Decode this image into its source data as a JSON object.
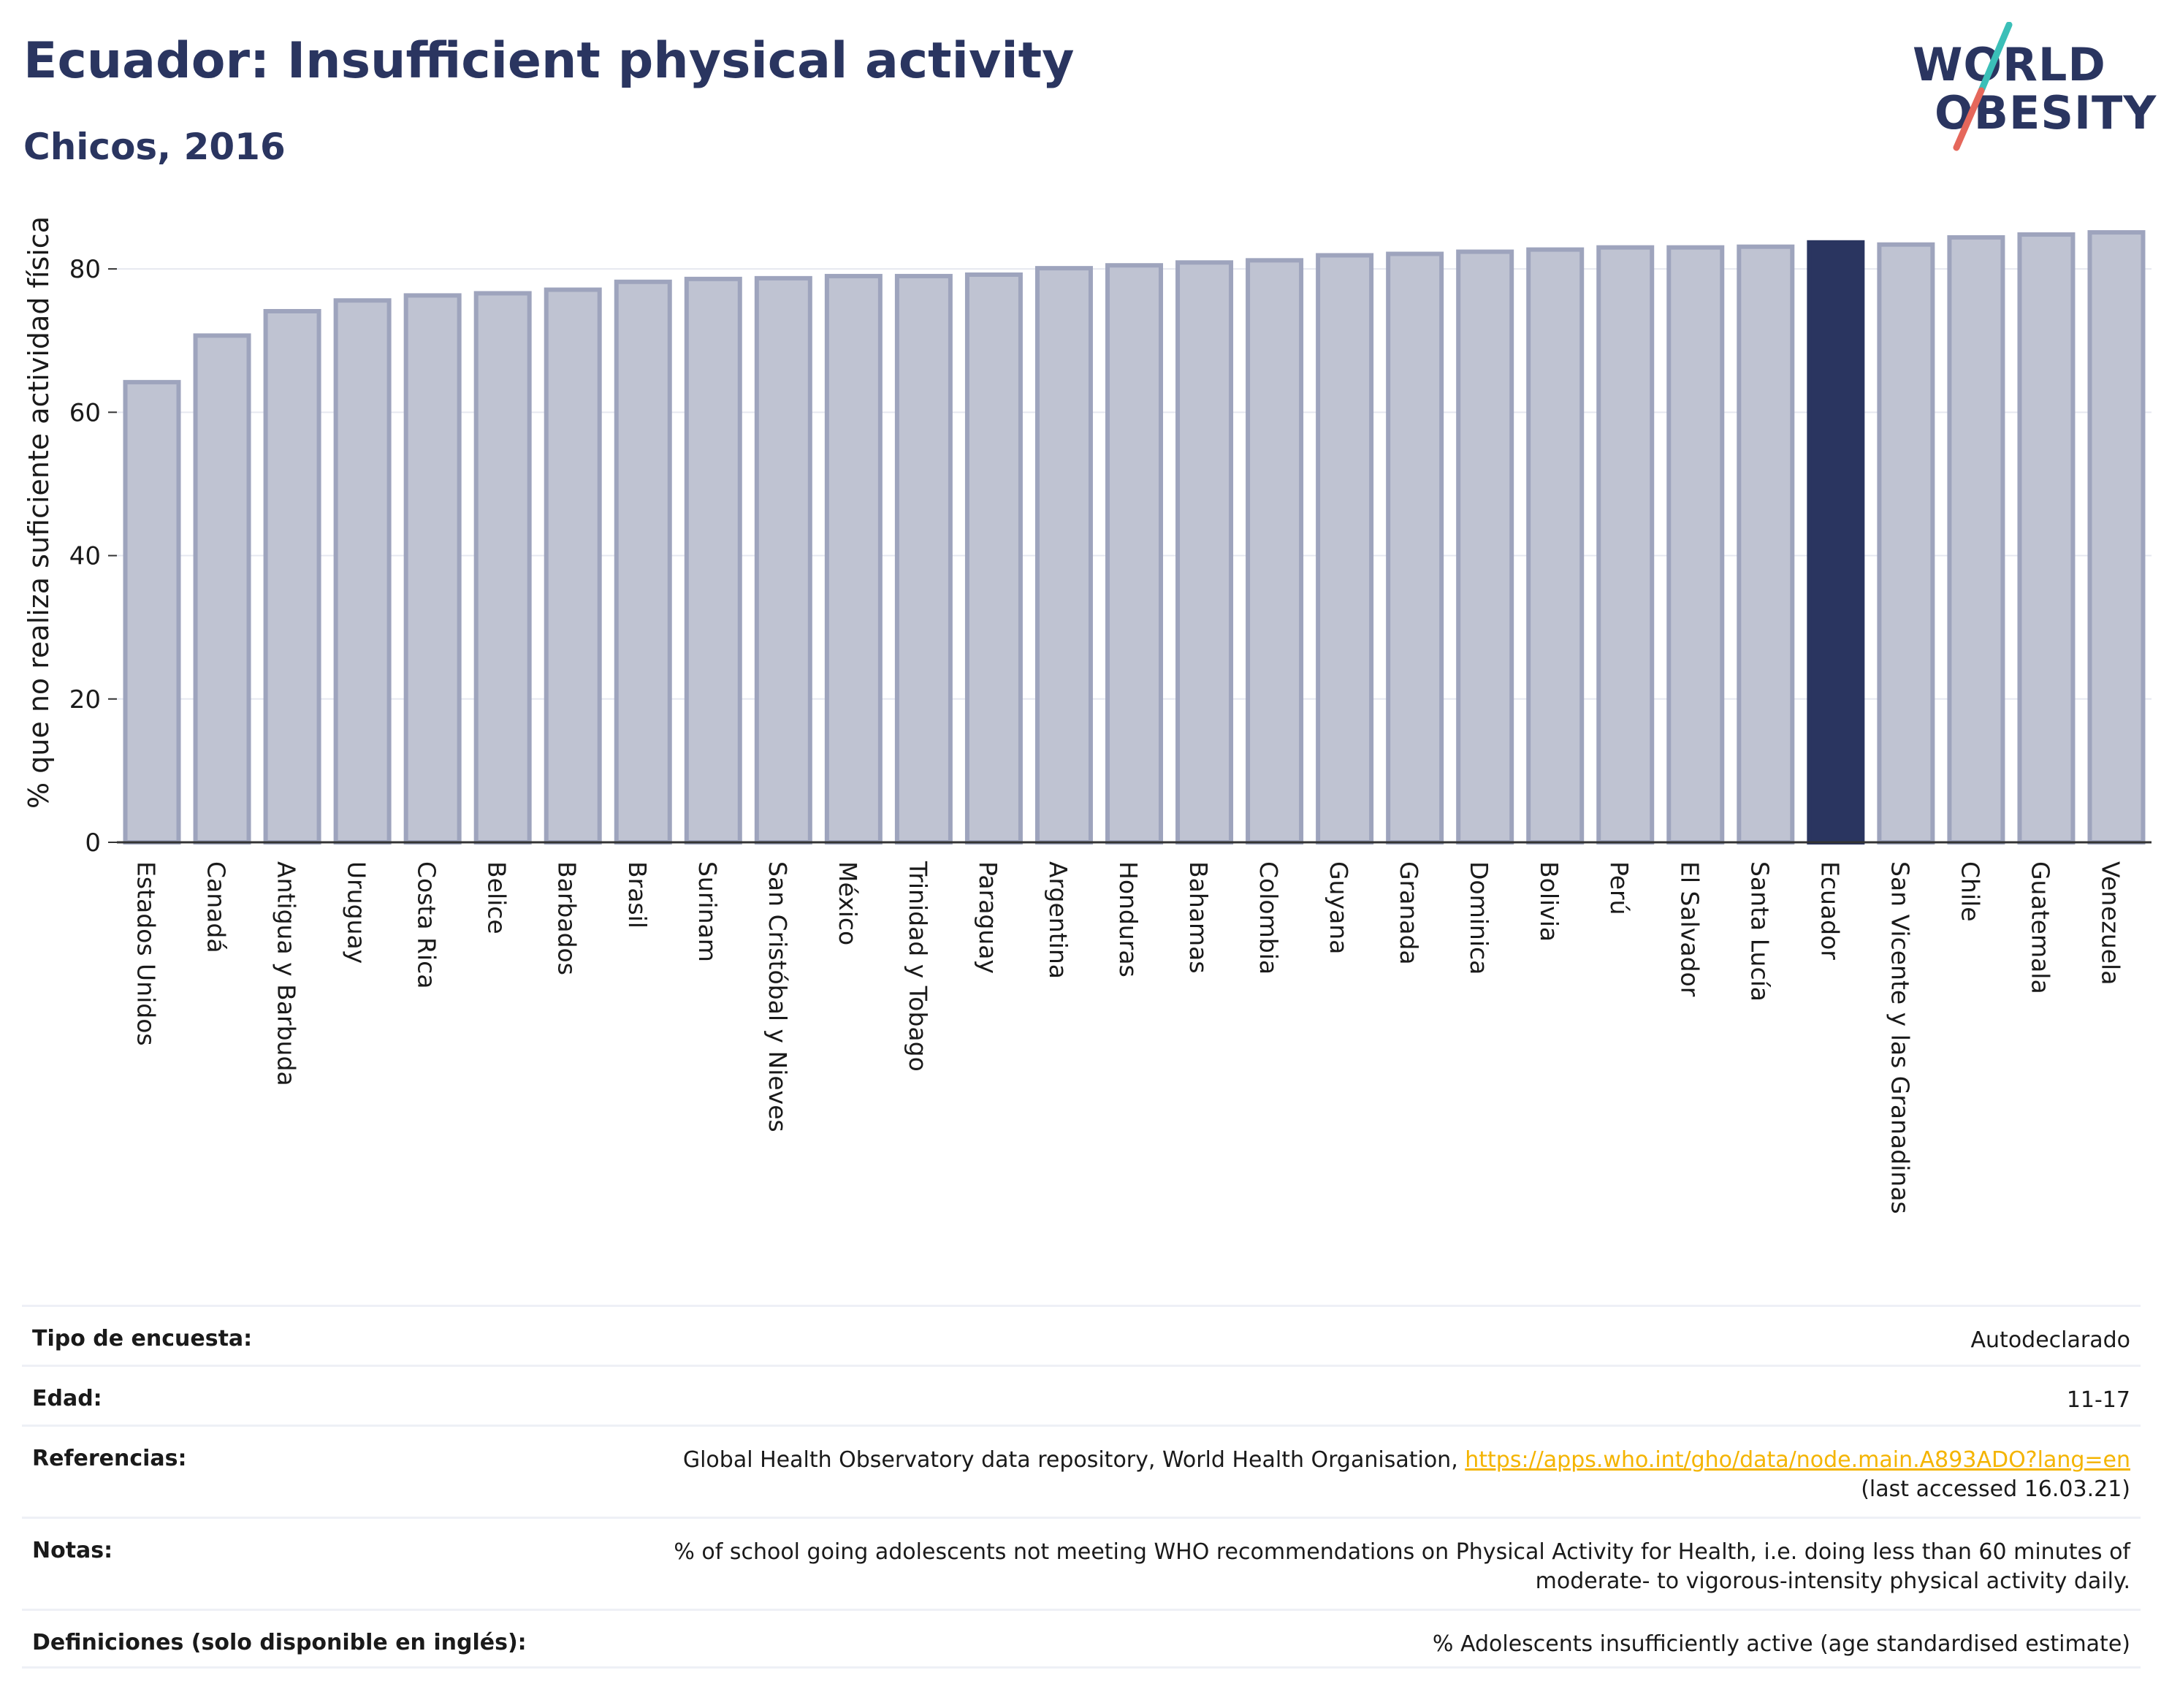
{
  "header": {
    "title": "Ecuador: Insufficient physical activity",
    "subtitle": "Chicos, 2016"
  },
  "logo": {
    "line1": "WORLD",
    "line2": "OBESITY"
  },
  "colors": {
    "bar_fill": "#bfc3d2",
    "bar_stroke": "#9ea4bd",
    "highlight": "#2a3560",
    "title": "#2a3560",
    "link": "#f4b400"
  },
  "chart_data": {
    "type": "bar",
    "title": "",
    "xlabel": "",
    "ylabel": "% que no realiza suficiente actividad física",
    "ylim": [
      0,
      90
    ],
    "yticks": [
      0,
      20,
      40,
      60,
      80
    ],
    "grid": true,
    "highlight": "Ecuador",
    "categories": [
      "Estados Unidos",
      "Canadá",
      "Antigua y Barbuda",
      "Uruguay",
      "Costa Rica",
      "Belice",
      "Barbados",
      "Brasil",
      "Surinam",
      "San Cristóbal y Nieves",
      "México",
      "Trinidad y Tobago",
      "Paraguay",
      "Argentina",
      "Honduras",
      "Bahamas",
      "Colombia",
      "Guyana",
      "Granada",
      "Dominica",
      "Bolivia",
      "Perú",
      "El Salvador",
      "Santa Lucía",
      "Ecuador",
      "San Vicente y las Granadinas",
      "Chile",
      "Guatemala",
      "Venezuela"
    ],
    "values": [
      64.2,
      70.7,
      74.1,
      75.6,
      76.3,
      76.6,
      77.1,
      78.2,
      78.6,
      78.7,
      79.0,
      79.0,
      79.2,
      80.1,
      80.5,
      80.9,
      81.2,
      81.9,
      82.1,
      82.4,
      82.7,
      83.0,
      83.0,
      83.1,
      83.7,
      83.4,
      84.4,
      84.8,
      85.1
    ]
  },
  "info": {
    "survey_label": "Tipo de encuesta:",
    "survey_value": "Autodeclarado",
    "age_label": "Edad:",
    "age_value": "11-17",
    "refs_label": "Referencias:",
    "refs_text": "Global Health Observatory data repository, World Health Organisation, ",
    "refs_link": "https://apps.who.int/gho/data/node.main.A893ADO?lang=en",
    "refs_accessed": "(last accessed 16.03.21)",
    "notes_label": "Notas:",
    "notes_line1": "% of school going adolescents not meeting WHO recommendations on Physical Activity for Health, i.e. doing less than 60 minutes of",
    "notes_line2": "moderate- to vigorous-intensity physical activity daily.",
    "defs_label": "Definiciones (solo disponible en inglés):",
    "defs_value": "% Adolescents insufficiently active (age standardised estimate)"
  }
}
